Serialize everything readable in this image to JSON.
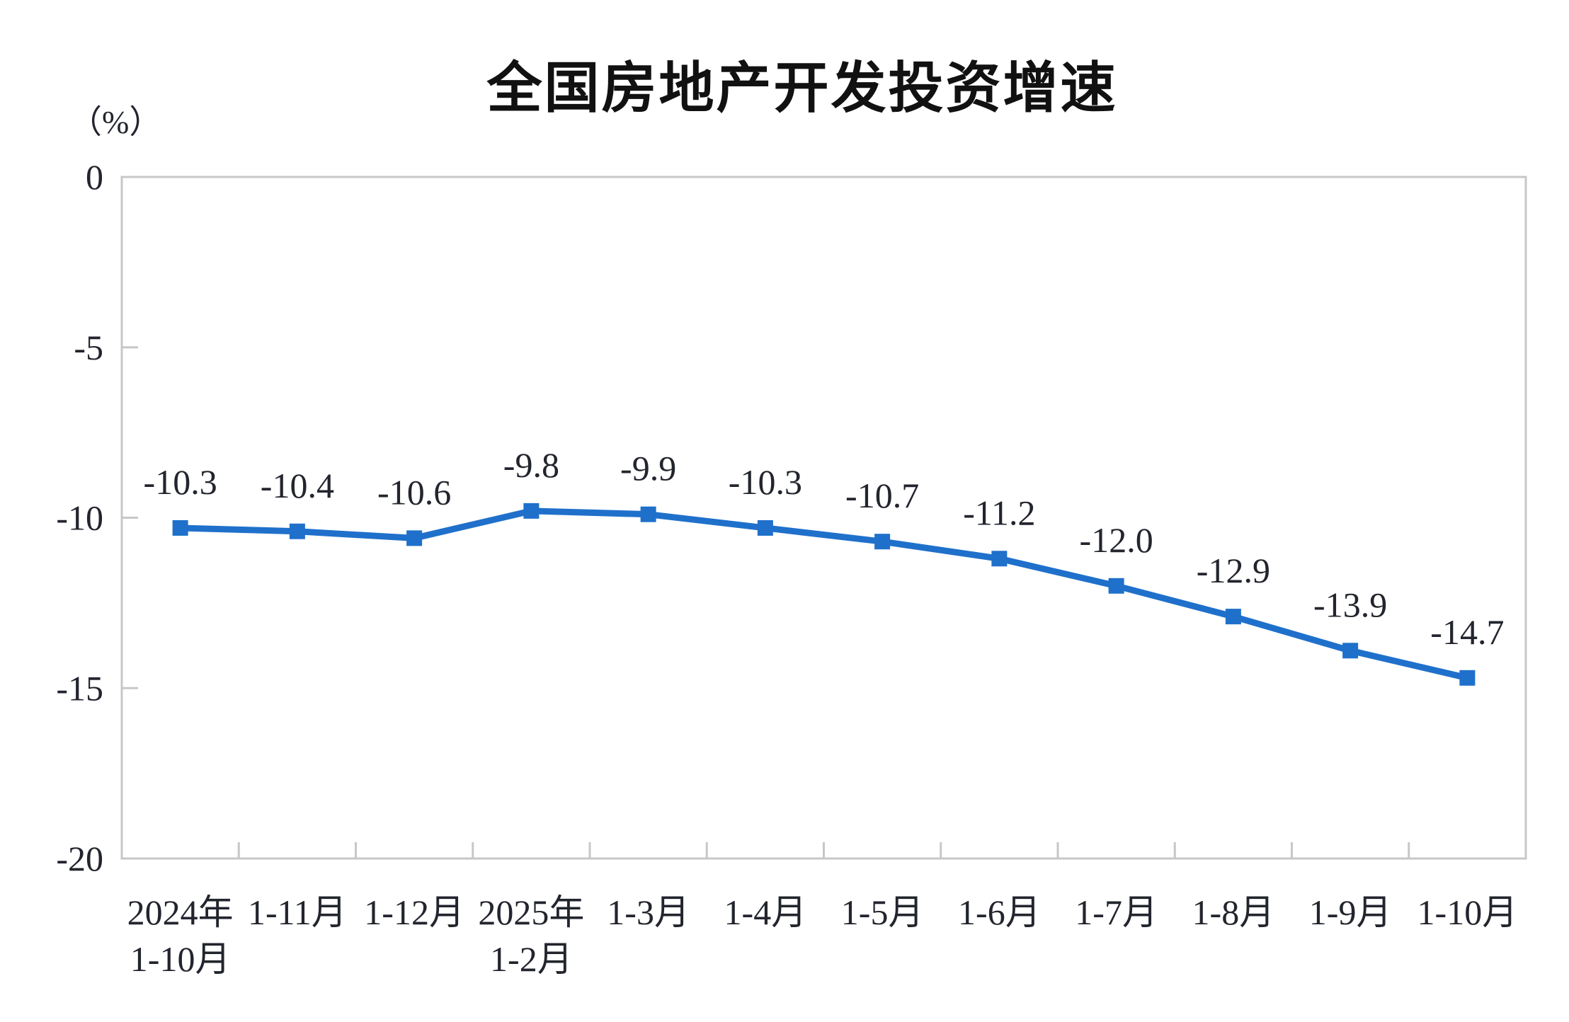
{
  "chart_data": {
    "type": "line",
    "title": "全国房地产开发投资增速",
    "unit_label": "（%）",
    "series_name": "全国房地产开发投资增速",
    "categories": [
      "2024年\n1-10月",
      "1-11月",
      "1-12月",
      "2025年\n1-2月",
      "1-3月",
      "1-4月",
      "1-5月",
      "1-6月",
      "1-7月",
      "1-8月",
      "1-9月",
      "1-10月"
    ],
    "values": [
      -10.3,
      -10.4,
      -10.6,
      -9.8,
      -9.9,
      -10.3,
      -10.7,
      -11.2,
      -12.0,
      -12.9,
      -13.9,
      -14.7
    ],
    "point_labels": [
      "-10.3",
      "-10.4",
      "-10.6",
      "-9.8",
      "-9.9",
      "-10.3",
      "-10.7",
      "-11.2",
      "-12.0",
      "-12.9",
      "-13.9",
      "-14.7"
    ],
    "y_axis": {
      "range": [
        0,
        -20
      ],
      "ticks": [
        0,
        -5,
        -10,
        -15,
        -20
      ],
      "tick_labels": [
        "0",
        "-5",
        "-10",
        "-15",
        "-20"
      ]
    },
    "x_axis": {
      "tick_style": "boundary"
    },
    "grid": false,
    "legend_position": "none",
    "marker": "square",
    "colors": {
      "line": "#1f70cb",
      "marker": "#1f70cb",
      "data_label": "#22252d",
      "axis_text": "#22252d",
      "axis_line": "#c7c7c7",
      "title": "#111111",
      "background": "#ffffff"
    }
  }
}
